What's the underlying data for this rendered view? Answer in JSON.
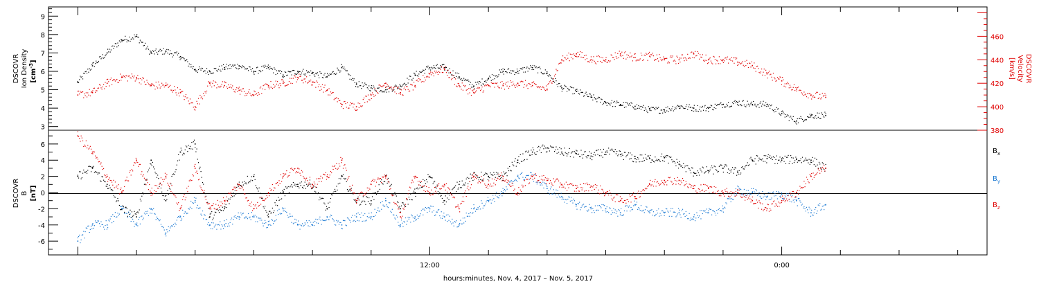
{
  "chart_data": [
    {
      "type": "scatter",
      "panel": "plasma",
      "ylabel_left": [
        "DSCOVR",
        "Ion Density",
        "[cm",
        "-3",
        "]"
      ],
      "ylabel_right": [
        "DSCOVR",
        "Velocity",
        "[km/s]"
      ],
      "ylim_left": [
        2.8,
        9.5
      ],
      "ylim_right": [
        380,
        485
      ],
      "yticks_left": [
        "3",
        "4",
        "5",
        "6",
        "7",
        "8",
        "9"
      ],
      "yticks_right": [
        "380",
        "400",
        "420",
        "440",
        "460"
      ],
      "colors": {
        "density": "#000000",
        "velocity": "#e00000"
      },
      "series": [
        {
          "key": "density",
          "axis": "left",
          "x": [
            0,
            0.5,
            1.0,
            1.5,
            2.0,
            2.5,
            3.0,
            3.5,
            4.0,
            4.5,
            5.0,
            5.5,
            6.0,
            6.5,
            7.0,
            7.5,
            8.0,
            8.5,
            9.0,
            9.5,
            10.0,
            10.5,
            11.0,
            11.5,
            12.0,
            12.5,
            13.0,
            13.5,
            14.0,
            14.5,
            15.0,
            15.5,
            16.0,
            16.5,
            17.0,
            17.5,
            18.0,
            18.5,
            19.0,
            19.5,
            20.0,
            20.5,
            21.0,
            21.5,
            22.0,
            22.5,
            23.0,
            23.5,
            24.0,
            24.5,
            25.0,
            25.5
          ],
          "y": [
            5.4,
            6.3,
            7.0,
            7.7,
            7.9,
            7.0,
            7.1,
            6.8,
            6.1,
            6.0,
            6.2,
            6.3,
            6.0,
            6.2,
            5.8,
            6.0,
            5.9,
            5.7,
            6.2,
            5.3,
            5.1,
            5.0,
            5.2,
            5.8,
            6.2,
            6.2,
            5.7,
            5.2,
            5.6,
            6.0,
            6.0,
            6.2,
            5.9,
            5.1,
            4.9,
            4.6,
            4.3,
            4.2,
            4.1,
            3.9,
            3.9,
            4.1,
            4.0,
            4.0,
            4.2,
            4.3,
            4.2,
            4.2,
            3.7,
            3.3,
            3.6,
            3.6
          ]
        },
        {
          "key": "velocity",
          "axis": "right",
          "x": [
            0,
            0.5,
            1.0,
            1.5,
            2.0,
            2.5,
            3.0,
            3.5,
            4.0,
            4.5,
            5.0,
            5.5,
            6.0,
            6.5,
            7.0,
            7.5,
            8.0,
            8.5,
            9.0,
            9.5,
            10.0,
            10.5,
            11.0,
            11.5,
            12.0,
            12.5,
            13.0,
            13.5,
            14.0,
            14.5,
            15.0,
            15.5,
            16.0,
            16.5,
            17.0,
            17.5,
            18.0,
            18.5,
            19.0,
            19.5,
            20.0,
            20.5,
            21.0,
            21.5,
            22.0,
            22.5,
            23.0,
            23.5,
            24.0,
            24.5,
            25.0,
            25.5
          ],
          "y": [
            410,
            412,
            420,
            425,
            425,
            418,
            418,
            412,
            400,
            420,
            418,
            414,
            410,
            418,
            420,
            425,
            421,
            414,
            402,
            400,
            410,
            420,
            412,
            418,
            428,
            432,
            418,
            412,
            418,
            418,
            420,
            418,
            415,
            440,
            445,
            440,
            440,
            445,
            442,
            443,
            440,
            440,
            445,
            440,
            440,
            438,
            435,
            428,
            422,
            415,
            410,
            408
          ]
        }
      ]
    },
    {
      "type": "scatter",
      "panel": "field",
      "ylabel_left": [
        "DSCOVR",
        "B",
        "[nT]"
      ],
      "ylim": [
        -7.7,
        7.7
      ],
      "yticks": [
        "-6",
        "-4",
        "-2",
        "0",
        "2",
        "4",
        "6"
      ],
      "legend": [
        {
          "label": "B",
          "sub": "x",
          "color": "#000000"
        },
        {
          "label": "B",
          "sub": "y",
          "color": "#1a78d2"
        },
        {
          "label": "B",
          "sub": "z",
          "color": "#e00000"
        }
      ],
      "series": [
        {
          "key": "bx",
          "color": "#000000",
          "x": [
            0,
            0.5,
            1.0,
            1.5,
            2.0,
            2.5,
            3.0,
            3.5,
            4.0,
            4.5,
            5.0,
            5.5,
            6.0,
            6.5,
            7.0,
            7.5,
            8.0,
            8.5,
            9.0,
            9.5,
            10.0,
            10.5,
            11.0,
            11.5,
            12.0,
            12.5,
            13.0,
            13.5,
            14.0,
            14.5,
            15.0,
            15.5,
            16.0,
            16.5,
            17.0,
            17.5,
            18.0,
            18.5,
            19.0,
            19.5,
            20.0,
            20.5,
            21.0,
            21.5,
            22.0,
            22.5,
            23.0,
            23.5,
            24.0,
            24.5,
            25.0,
            25.5
          ],
          "y": [
            2,
            3,
            1,
            -2,
            -3,
            4,
            -1,
            5,
            6,
            -3,
            -2,
            1,
            2,
            -3,
            0,
            1,
            1,
            -2,
            2,
            -1,
            -1,
            2,
            -2,
            0,
            2,
            -1,
            1,
            2,
            2,
            2,
            4,
            5,
            5.5,
            5,
            4.8,
            4.5,
            5,
            4.7,
            4.2,
            4.2,
            4.3,
            3.5,
            2.5,
            2.7,
            3.0,
            2.5,
            4,
            4.2,
            4.0,
            4.1,
            4.0,
            3.0
          ]
        },
        {
          "key": "by",
          "color": "#1a78d2",
          "x": [
            0,
            0.5,
            1.0,
            1.5,
            2.0,
            2.5,
            3.0,
            3.5,
            4.0,
            4.5,
            5.0,
            5.5,
            6.0,
            6.5,
            7.0,
            7.5,
            8.0,
            8.5,
            9.0,
            9.5,
            10.0,
            10.5,
            11.0,
            11.5,
            12.0,
            12.5,
            13.0,
            13.5,
            14.0,
            14.5,
            15.0,
            15.5,
            16.0,
            16.5,
            17.0,
            17.5,
            18.0,
            18.5,
            19.0,
            19.5,
            20.0,
            20.5,
            21.0,
            21.5,
            22.0,
            22.5,
            23.0,
            23.5,
            24.0,
            24.5,
            25.0,
            25.5
          ],
          "y": [
            -6,
            -4,
            -4,
            -2,
            -4,
            -2,
            -5,
            -3,
            -1,
            -4,
            -4,
            -3,
            -3,
            -4,
            -2,
            -4,
            -4,
            -3,
            -4,
            -3,
            -3,
            -1,
            -4,
            -3,
            -2,
            -3,
            -4,
            -2,
            -1,
            0,
            2,
            2,
            0.5,
            -0.5,
            -1.5,
            -2,
            -2,
            -2.5,
            -1.5,
            -2.5,
            -2.5,
            -2.5,
            -3,
            -2.5,
            -2,
            0.3,
            0,
            -0.5,
            -0.2,
            -1,
            -2.5,
            -1.5
          ]
        },
        {
          "key": "bz",
          "color": "#e00000",
          "x": [
            0,
            0.5,
            1.0,
            1.5,
            2.0,
            2.5,
            3.0,
            3.5,
            4.0,
            4.5,
            5.0,
            5.5,
            6.0,
            6.5,
            7.0,
            7.5,
            8.0,
            8.5,
            9.0,
            9.5,
            10.0,
            10.5,
            11.0,
            11.5,
            12.0,
            12.5,
            13.0,
            13.5,
            14.0,
            14.5,
            15.0,
            15.5,
            16.0,
            16.5,
            17.0,
            17.5,
            18.0,
            18.5,
            19.0,
            19.5,
            20.0,
            20.5,
            21.0,
            21.5,
            22.0,
            22.5,
            23.0,
            23.5,
            24.0,
            24.5,
            25.0,
            25.5
          ],
          "y": [
            7,
            5,
            2,
            0,
            4,
            0,
            2,
            -2,
            3,
            -2,
            -1,
            1,
            -2,
            0,
            2,
            3,
            1,
            2,
            4,
            -1,
            1,
            2,
            -3,
            2,
            0,
            1,
            -2,
            2,
            1,
            2,
            0,
            2,
            1.5,
            1,
            0.5,
            0.8,
            0,
            -1,
            -0.5,
            1,
            1.5,
            1.5,
            0.5,
            0.5,
            0,
            0,
            -1,
            -2,
            -1,
            0,
            2,
            3
          ]
        }
      ]
    }
  ],
  "x_axis": {
    "xlim": [
      -1,
      31
    ],
    "tick_hours": [
      12,
      24
    ],
    "tick_labels": [
      "12:00",
      "0:00"
    ],
    "label": "hours:minutes, Nov. 4, 2017 – Nov. 5, 2017"
  }
}
